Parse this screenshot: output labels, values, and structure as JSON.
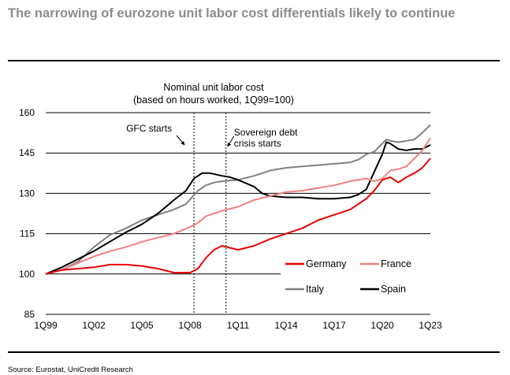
{
  "page": {
    "headline": "The narrowing of eurozone unit labor cost differentials likely to continue",
    "source": "Source: Eurostat, UniCredit Research"
  },
  "chart_data": {
    "type": "line",
    "title": "Nominal unit labor cost",
    "subtitle": "(based on hours worked, 1Q99=100)",
    "xlabel": "",
    "ylabel": "",
    "ylim": [
      85,
      160
    ],
    "yticks": [
      85,
      100,
      115,
      130,
      145,
      160
    ],
    "xlim": [
      1999.0,
      2023.0
    ],
    "xticks": [
      {
        "label": "1Q99",
        "x": 1999.0
      },
      {
        "label": "1Q02",
        "x": 2002.0
      },
      {
        "label": "1Q05",
        "x": 2005.0
      },
      {
        "label": "1Q08",
        "x": 2008.0
      },
      {
        "label": "1Q11",
        "x": 2011.0
      },
      {
        "label": "1Q14",
        "x": 2014.0
      },
      {
        "label": "1Q17",
        "x": 2017.0
      },
      {
        "label": "1Q20",
        "x": 2020.0
      },
      {
        "label": "1Q23",
        "x": 2023.0
      }
    ],
    "grid": "horizontal",
    "legend_position": "bottom-right",
    "annotations": [
      {
        "text": "GFC starts",
        "x": 2008.25
      },
      {
        "text": "Sovereign debt\ncrisis starts",
        "x": 2010.25
      }
    ],
    "series": [
      {
        "name": "Italy",
        "color": "#808080",
        "points": [
          [
            1999.0,
            100.0
          ],
          [
            2000.0,
            101.5
          ],
          [
            2001.0,
            104.5
          ],
          [
            2002.0,
            110.0
          ],
          [
            2003.0,
            114.5
          ],
          [
            2004.0,
            117.0
          ],
          [
            2005.0,
            120.0
          ],
          [
            2006.0,
            122.0
          ],
          [
            2007.0,
            124.0
          ],
          [
            2007.75,
            126.0
          ],
          [
            2008.5,
            131.0
          ],
          [
            2009.0,
            133.0
          ],
          [
            2009.5,
            134.0
          ],
          [
            2010.0,
            134.5
          ],
          [
            2011.0,
            135.0
          ],
          [
            2012.0,
            136.5
          ],
          [
            2013.0,
            138.5
          ],
          [
            2014.0,
            139.5
          ],
          [
            2015.0,
            140.0
          ],
          [
            2016.0,
            140.5
          ],
          [
            2017.0,
            141.0
          ],
          [
            2018.0,
            141.5
          ],
          [
            2018.5,
            142.5
          ],
          [
            2019.0,
            144.5
          ],
          [
            2019.5,
            145.5
          ],
          [
            2020.0,
            148.5
          ],
          [
            2020.25,
            150.0
          ],
          [
            2020.5,
            149.5
          ],
          [
            2021.0,
            149.0
          ],
          [
            2021.5,
            149.5
          ],
          [
            2022.0,
            150.0
          ],
          [
            2022.5,
            152.5
          ],
          [
            2023.0,
            155.5
          ]
        ]
      },
      {
        "name": "Spain",
        "color": "#000000",
        "points": [
          [
            1999.0,
            100.0
          ],
          [
            2000.0,
            102.5
          ],
          [
            2001.0,
            105.5
          ],
          [
            2002.0,
            108.5
          ],
          [
            2003.0,
            112.0
          ],
          [
            2004.0,
            115.5
          ],
          [
            2005.0,
            118.5
          ],
          [
            2006.0,
            122.5
          ],
          [
            2007.0,
            127.5
          ],
          [
            2007.75,
            131.0
          ],
          [
            2008.25,
            135.5
          ],
          [
            2008.75,
            137.5
          ],
          [
            2009.25,
            137.5
          ],
          [
            2010.0,
            136.5
          ],
          [
            2010.5,
            136.0
          ],
          [
            2011.0,
            135.0
          ],
          [
            2012.0,
            132.5
          ],
          [
            2012.5,
            130.0
          ],
          [
            2013.0,
            129.0
          ],
          [
            2014.0,
            128.5
          ],
          [
            2015.0,
            128.5
          ],
          [
            2016.0,
            128.0
          ],
          [
            2017.0,
            128.0
          ],
          [
            2018.0,
            128.5
          ],
          [
            2018.5,
            129.5
          ],
          [
            2019.0,
            131.5
          ],
          [
            2019.5,
            138.0
          ],
          [
            2020.0,
            144.5
          ],
          [
            2020.25,
            149.0
          ],
          [
            2020.5,
            148.5
          ],
          [
            2021.0,
            146.5
          ],
          [
            2021.5,
            146.0
          ],
          [
            2022.0,
            146.5
          ],
          [
            2022.5,
            146.5
          ],
          [
            2023.0,
            148.0
          ]
        ]
      },
      {
        "name": "France",
        "color": "#f08080",
        "points": [
          [
            1999.0,
            100.0
          ],
          [
            2000.0,
            101.5
          ],
          [
            2001.0,
            104.0
          ],
          [
            2002.0,
            106.5
          ],
          [
            2003.0,
            108.5
          ],
          [
            2004.0,
            110.0
          ],
          [
            2005.0,
            112.0
          ],
          [
            2006.0,
            113.5
          ],
          [
            2007.0,
            115.0
          ],
          [
            2008.0,
            117.5
          ],
          [
            2008.5,
            119.0
          ],
          [
            2009.0,
            121.5
          ],
          [
            2010.0,
            123.5
          ],
          [
            2011.0,
            125.0
          ],
          [
            2012.0,
            127.5
          ],
          [
            2013.0,
            129.0
          ],
          [
            2014.0,
            130.5
          ],
          [
            2015.0,
            131.0
          ],
          [
            2016.0,
            132.0
          ],
          [
            2017.0,
            133.0
          ],
          [
            2018.0,
            134.5
          ],
          [
            2019.0,
            135.5
          ],
          [
            2019.5,
            134.5
          ],
          [
            2020.0,
            135.5
          ],
          [
            2020.5,
            138.5
          ],
          [
            2021.0,
            139.0
          ],
          [
            2021.5,
            140.0
          ],
          [
            2022.0,
            143.0
          ],
          [
            2022.5,
            146.0
          ],
          [
            2023.0,
            150.5
          ]
        ]
      },
      {
        "name": "Germany",
        "color": "#e60000",
        "points": [
          [
            1999.0,
            100.0
          ],
          [
            2000.0,
            101.5
          ],
          [
            2001.0,
            102.0
          ],
          [
            2002.0,
            102.5
          ],
          [
            2003.0,
            103.5
          ],
          [
            2004.0,
            103.5
          ],
          [
            2005.0,
            103.0
          ],
          [
            2006.0,
            102.0
          ],
          [
            2007.0,
            100.5
          ],
          [
            2008.0,
            100.5
          ],
          [
            2008.5,
            102.0
          ],
          [
            2009.0,
            106.0
          ],
          [
            2009.5,
            109.0
          ],
          [
            2010.0,
            110.5
          ],
          [
            2011.0,
            109.0
          ],
          [
            2012.0,
            110.5
          ],
          [
            2013.0,
            113.0
          ],
          [
            2014.0,
            115.0
          ],
          [
            2015.0,
            117.0
          ],
          [
            2016.0,
            120.0
          ],
          [
            2017.0,
            122.0
          ],
          [
            2018.0,
            124.0
          ],
          [
            2019.0,
            128.0
          ],
          [
            2019.5,
            131.0
          ],
          [
            2020.0,
            135.0
          ],
          [
            2020.5,
            136.0
          ],
          [
            2021.0,
            134.0
          ],
          [
            2021.5,
            136.0
          ],
          [
            2022.0,
            137.5
          ],
          [
            2022.5,
            139.5
          ],
          [
            2023.0,
            143.0
          ]
        ]
      }
    ],
    "legend_order": [
      "Germany",
      "France",
      "Italy",
      "Spain"
    ]
  }
}
